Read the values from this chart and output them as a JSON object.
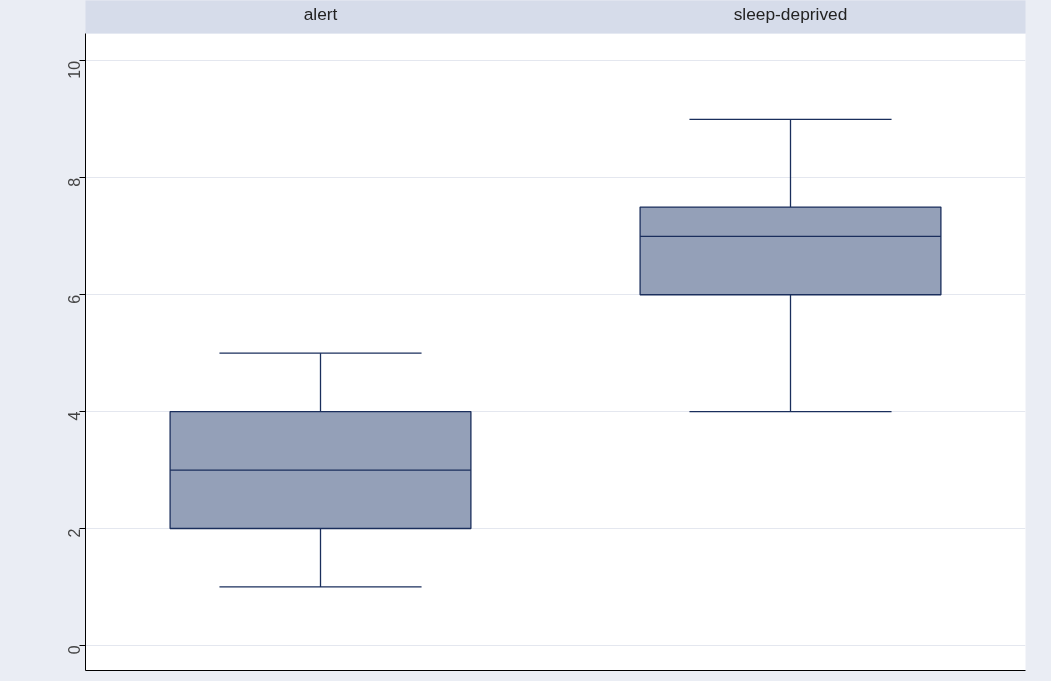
{
  "chart_data": {
    "type": "box",
    "categories": [
      "alert",
      "sleep-deprived"
    ],
    "series": [
      {
        "color": "#94a0b8",
        "boxes": [
          {
            "low": 1,
            "q1": 2,
            "median": 3,
            "q3": 4,
            "high": 5
          },
          {
            "low": 4,
            "q1": 6,
            "median": 7,
            "q3": 7.5,
            "high": 9
          }
        ]
      }
    ],
    "ylim": [
      -0.43,
      10.47
    ],
    "yticks": [
      0,
      2,
      4,
      6,
      8,
      10
    ],
    "grid": "y"
  }
}
